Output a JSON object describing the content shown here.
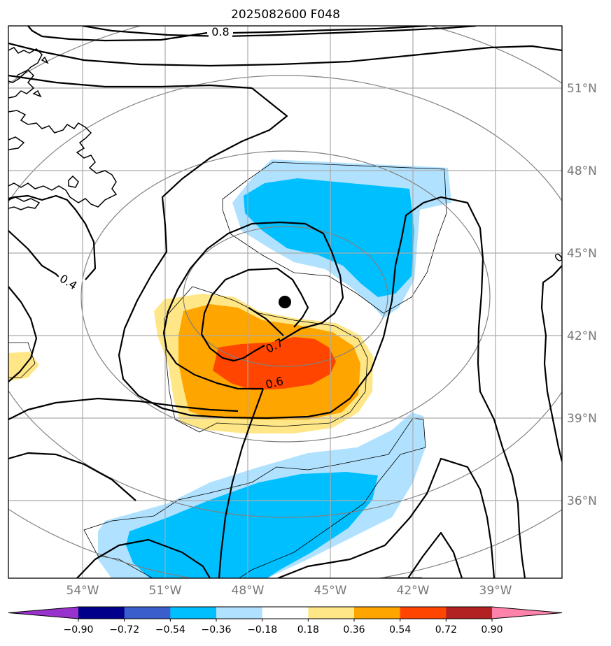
{
  "title": "2025082600 F048",
  "lat_labels": [
    "51°N",
    "48°N",
    "45°N",
    "42°N",
    "39°N",
    "36°N"
  ],
  "lon_labels": [
    "54°W",
    "51°W",
    "48°W",
    "45°W",
    "42°W",
    "39°W"
  ],
  "contour_labels": [
    "0.8",
    "0.4",
    "0.7",
    "0.6",
    "0"
  ],
  "colorbar": {
    "ticks": [
      "−0.90",
      "−0.72",
      "−0.54",
      "−0.36",
      "−0.18",
      "0.18",
      "0.36",
      "0.54",
      "0.72",
      "0.90"
    ],
    "colors": [
      "#9932cc",
      "#00008b",
      "#3a5fcd",
      "#00bfff",
      "#b0e2ff",
      "#ffffff",
      "#ffe787",
      "#ffa500",
      "#ff4500",
      "#b22222",
      "#ff82ab"
    ]
  },
  "shading_colors": {
    "light_blue": "#b0e2ff",
    "blue": "#00bfff",
    "light_yellow": "#ffe787",
    "orange": "#ffa500",
    "red_orange": "#ff4500"
  },
  "marker": "low-center-dot"
}
